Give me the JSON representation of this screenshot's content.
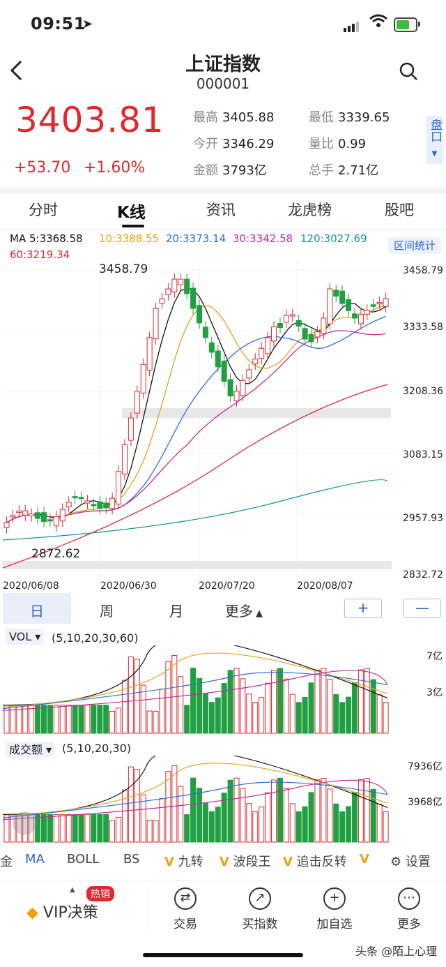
{
  "status_bar": {
    "time": "09:51"
  },
  "header": {
    "title": "上证指数",
    "code": "000001"
  },
  "quote": {
    "price": "3403.81",
    "change": "+53.70",
    "change_pct": "+1.60%",
    "stats": [
      {
        "label": "最高",
        "value": "3405.88"
      },
      {
        "label": "最低",
        "value": "3339.65"
      },
      {
        "label": "今开",
        "value": "3346.29"
      },
      {
        "label": "量比",
        "value": "0.99"
      },
      {
        "label": "金额",
        "value": "3793亿"
      },
      {
        "label": "总手",
        "value": "2.71亿"
      }
    ],
    "pankou": "盘口"
  },
  "tabs": [
    "分时",
    "K线",
    "资讯",
    "龙虎榜",
    "股吧"
  ],
  "active_tab": "K线",
  "ma_legend": {
    "ma5": "MA 5:3368.58",
    "ma10": "10:3388.55",
    "ma20": "20:3373.14",
    "ma30": "30:3342.58",
    "ma120": "120:3027.69",
    "ma60": "60:3219.34",
    "interval_btn": "区间统计"
  },
  "price_axis": [
    "3458.79",
    "3333.58",
    "3208.36",
    "3083.15",
    "2957.93",
    "2832.72"
  ],
  "date_axis": [
    "2020/06/08",
    "2020/06/30",
    "2020/07/20",
    "2020/08/07"
  ],
  "annotations": {
    "high": "3458.79",
    "low": "2872.62"
  },
  "periods": {
    "day": "日",
    "week": "周",
    "month": "月",
    "more": "更多",
    "plus": "+",
    "minus": "—"
  },
  "vol_panel": {
    "name": "VOL",
    "params": "(5,10,20,30,60)",
    "axis": [
      "7亿",
      "3亿"
    ]
  },
  "amount_panel": {
    "name": "成交额",
    "params": "(5,10,20,30)",
    "axis": [
      "7936亿",
      "3968亿"
    ]
  },
  "indicator_tabs": [
    "金",
    "MA",
    "BOLL",
    "BS",
    "九转",
    "波段王",
    "追击反转",
    "设置"
  ],
  "bottom_nav": {
    "vip": "VIP决策",
    "hot_badge": "热销",
    "items": [
      "交易",
      "买指数",
      "加自选",
      "更多"
    ]
  },
  "watermark": "头条 @陌上心理",
  "colors": {
    "up": "#e0282e",
    "down": "#21a042",
    "ma5": "#111111",
    "ma10": "#e8a317",
    "ma20": "#2a6fdb",
    "ma30": "#c42a9f",
    "ma60": "#e0282e",
    "ma120": "#16919a",
    "accent": "#2a64c8"
  }
}
